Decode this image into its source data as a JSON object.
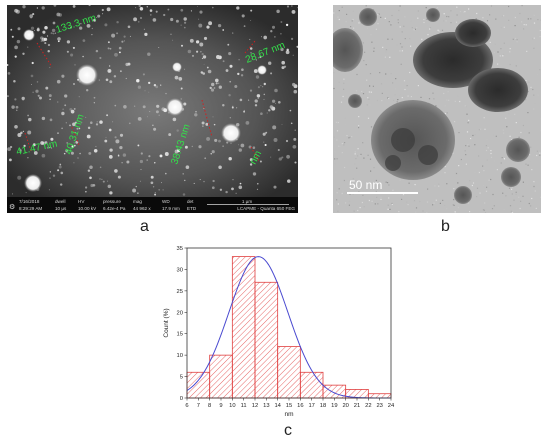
{
  "panel_labels": {
    "a": "a",
    "b": "b",
    "c": "c"
  },
  "sem": {
    "annotations": [
      "133.3 nm",
      "28.67 nm",
      "40.31 nm",
      "38.43 nm",
      "41.47 nm",
      "nm"
    ],
    "info_bar": {
      "date": "7/16/2018",
      "time": "8:29:29 AM",
      "dwell_label": "dwell",
      "dwell": "10 µs",
      "hv_label": "HV",
      "hv": "10.00 kV",
      "pressure_label": "pressure",
      "pressure": "6.42e-4 Pa",
      "mag_label": "mag",
      "mag": "44 962 x",
      "wd_label": "WD",
      "wd": "17.9 mm",
      "det_label": "det",
      "det": "ETD",
      "scale": "1 µm",
      "instrument": "LCAPME - Quanta 650 FEG"
    }
  },
  "tem": {
    "scale_bar": "50 nm"
  },
  "chart_data": {
    "type": "bar",
    "xlabel": "nm",
    "ylabel": "Count (%)",
    "xlim": [
      6,
      24
    ],
    "ylim": [
      0,
      35
    ],
    "xticks": [
      6,
      7,
      8,
      9,
      10,
      11,
      12,
      13,
      14,
      15,
      16,
      17,
      18,
      19,
      20,
      21,
      22,
      23,
      24
    ],
    "yticks": [
      0,
      5,
      10,
      15,
      20,
      25,
      30,
      35
    ],
    "bins": [
      {
        "x0": 6,
        "x1": 8,
        "value": 6
      },
      {
        "x0": 8,
        "x1": 10,
        "value": 10
      },
      {
        "x0": 10,
        "x1": 12,
        "value": 33
      },
      {
        "x0": 12,
        "x1": 14,
        "value": 27
      },
      {
        "x0": 14,
        "x1": 16,
        "value": 12
      },
      {
        "x0": 16,
        "x1": 18,
        "value": 6
      },
      {
        "x0": 18,
        "x1": 20,
        "value": 3
      },
      {
        "x0": 20,
        "x1": 22,
        "value": 2
      },
      {
        "x0": 22,
        "x1": 24,
        "value": 1
      }
    ],
    "fit": {
      "type": "gaussian",
      "mean": 12.3,
      "sd": 2.6,
      "peak": 33
    },
    "colors": {
      "bar": "#e04040",
      "fit": "#4a4ad0"
    }
  }
}
